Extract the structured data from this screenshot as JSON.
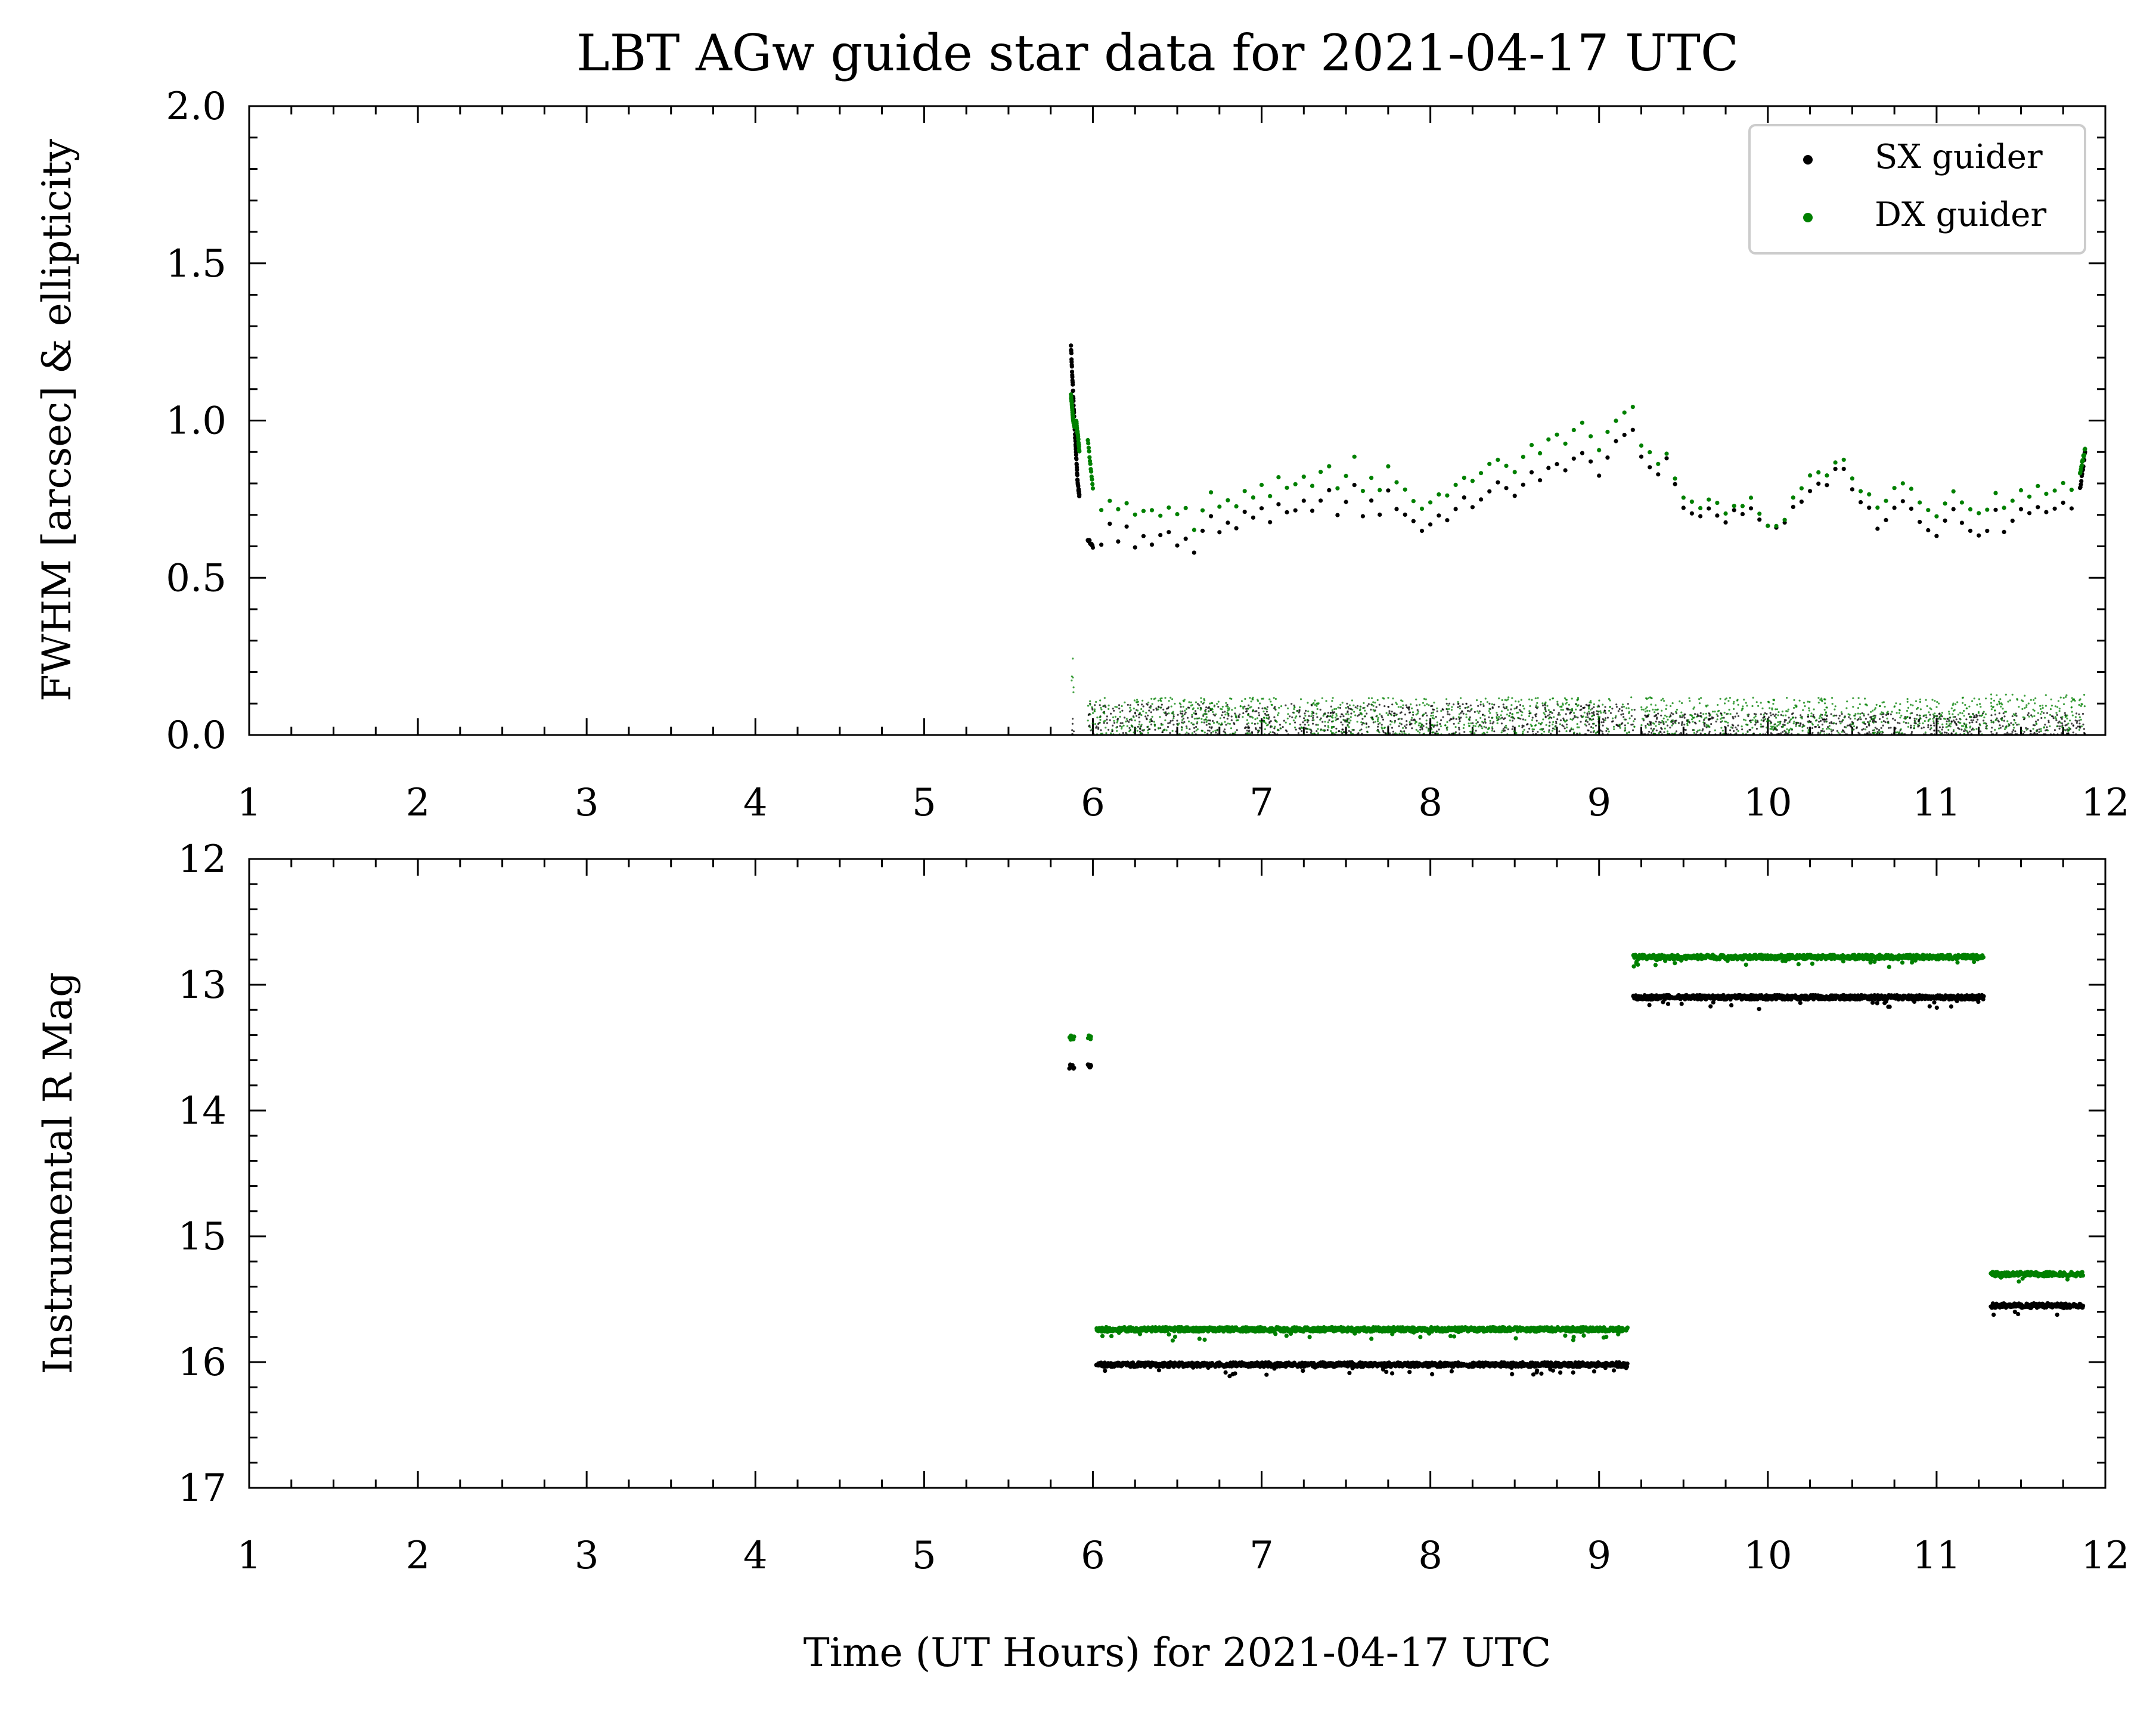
{
  "figure": {
    "title": "LBT AGw guide star data for 2021-04-17 UTC",
    "xlabel": "Time (UT Hours) for 2021-04-17 UTC"
  },
  "colors": {
    "sx": "#000000",
    "dx": "#008000"
  },
  "chart_data": [
    {
      "type": "scatter",
      "panel": "top",
      "ylabel": "FWHM [arcsec] & ellipticity",
      "xlim": [
        1,
        12
      ],
      "ylim": [
        0,
        2
      ],
      "xticks": [
        1,
        2,
        3,
        4,
        5,
        6,
        7,
        8,
        9,
        10,
        11,
        12
      ],
      "xtick_labels": [
        "1",
        "2",
        "3",
        "4",
        "5",
        "6",
        "7",
        "8",
        "9",
        "10",
        "11",
        "12"
      ],
      "yticks": [
        0,
        0.5,
        1,
        1.5,
        2
      ],
      "ytick_labels": [
        "0.0",
        "0.5",
        "1.0",
        "1.5",
        "2.0"
      ],
      "legend": {
        "placement": "top-right",
        "entries": [
          "SX guider",
          "DX guider"
        ]
      },
      "series": [
        {
          "name": "SX guider",
          "color": "#000000",
          "quantity": "FWHM",
          "x": [
            5.87,
            5.88,
            5.89,
            5.9,
            5.91,
            5.92,
            5.97,
            6.0,
            6.05,
            6.1,
            6.15,
            6.2,
            6.25,
            6.3,
            6.35,
            6.4,
            6.45,
            6.5,
            6.55,
            6.6,
            6.65,
            6.7,
            6.75,
            6.8,
            6.85,
            6.9,
            6.95,
            7.0,
            7.05,
            7.1,
            7.15,
            7.2,
            7.25,
            7.3,
            7.35,
            7.4,
            7.45,
            7.5,
            7.55,
            7.6,
            7.65,
            7.7,
            7.75,
            7.8,
            7.85,
            7.9,
            7.95,
            8.0,
            8.05,
            8.1,
            8.15,
            8.2,
            8.25,
            8.3,
            8.35,
            8.4,
            8.45,
            8.5,
            8.55,
            8.6,
            8.65,
            8.7,
            8.75,
            8.8,
            8.85,
            8.9,
            8.95,
            9.0,
            9.05,
            9.1,
            9.15,
            9.2,
            9.25,
            9.3,
            9.35,
            9.4,
            9.45,
            9.5,
            9.55,
            9.6,
            9.65,
            9.7,
            9.75,
            9.8,
            9.85,
            9.9,
            9.95,
            10.0,
            10.05,
            10.1,
            10.15,
            10.2,
            10.25,
            10.3,
            10.35,
            10.4,
            10.45,
            10.5,
            10.55,
            10.6,
            10.65,
            10.7,
            10.75,
            10.8,
            10.85,
            10.9,
            10.95,
            11.0,
            11.05,
            11.1,
            11.15,
            11.2,
            11.25,
            11.3,
            11.35,
            11.4,
            11.45,
            11.5,
            11.55,
            11.6,
            11.65,
            11.7,
            11.75,
            11.8,
            11.85,
            11.88
          ],
          "y": [
            1.24,
            1.12,
            1.0,
            0.9,
            0.8,
            0.76,
            0.62,
            0.6,
            0.61,
            0.67,
            0.62,
            0.66,
            0.6,
            0.63,
            0.6,
            0.63,
            0.65,
            0.6,
            0.62,
            0.58,
            0.65,
            0.7,
            0.65,
            0.68,
            0.66,
            0.71,
            0.69,
            0.72,
            0.68,
            0.73,
            0.71,
            0.72,
            0.74,
            0.71,
            0.75,
            0.78,
            0.7,
            0.74,
            0.8,
            0.7,
            0.74,
            0.7,
            0.78,
            0.72,
            0.7,
            0.68,
            0.65,
            0.67,
            0.7,
            0.68,
            0.72,
            0.75,
            0.73,
            0.75,
            0.78,
            0.8,
            0.78,
            0.76,
            0.8,
            0.83,
            0.81,
            0.85,
            0.86,
            0.84,
            0.88,
            0.9,
            0.87,
            0.82,
            0.88,
            0.93,
            0.95,
            0.97,
            0.88,
            0.85,
            0.83,
            0.88,
            0.8,
            0.72,
            0.7,
            0.69,
            0.72,
            0.7,
            0.68,
            0.71,
            0.7,
            0.72,
            0.68,
            0.66,
            0.66,
            0.67,
            0.72,
            0.74,
            0.78,
            0.8,
            0.8,
            0.84,
            0.85,
            0.78,
            0.74,
            0.72,
            0.66,
            0.68,
            0.72,
            0.74,
            0.72,
            0.68,
            0.65,
            0.63,
            0.68,
            0.72,
            0.68,
            0.65,
            0.63,
            0.65,
            0.72,
            0.65,
            0.68,
            0.72,
            0.7,
            0.73,
            0.71,
            0.72,
            0.74,
            0.72,
            0.78,
            0.9
          ]
        },
        {
          "name": "DX guider",
          "color": "#008000",
          "quantity": "FWHM",
          "x": [
            5.87,
            5.88,
            5.89,
            5.9,
            5.91,
            5.92,
            5.97,
            6.0,
            6.05,
            6.1,
            6.15,
            6.2,
            6.25,
            6.3,
            6.35,
            6.4,
            6.45,
            6.5,
            6.55,
            6.6,
            6.65,
            6.7,
            6.75,
            6.8,
            6.85,
            6.9,
            6.95,
            7.0,
            7.05,
            7.1,
            7.15,
            7.2,
            7.25,
            7.3,
            7.35,
            7.4,
            7.45,
            7.5,
            7.55,
            7.6,
            7.65,
            7.7,
            7.75,
            7.8,
            7.85,
            7.9,
            7.95,
            8.0,
            8.05,
            8.1,
            8.15,
            8.2,
            8.25,
            8.3,
            8.35,
            8.4,
            8.45,
            8.5,
            8.55,
            8.6,
            8.65,
            8.7,
            8.75,
            8.8,
            8.85,
            8.9,
            8.95,
            9.0,
            9.05,
            9.1,
            9.15,
            9.2,
            9.25,
            9.3,
            9.35,
            9.4,
            9.45,
            9.5,
            9.55,
            9.6,
            9.65,
            9.7,
            9.75,
            9.8,
            9.85,
            9.9,
            9.95,
            10.0,
            10.05,
            10.1,
            10.15,
            10.2,
            10.25,
            10.3,
            10.35,
            10.4,
            10.45,
            10.5,
            10.55,
            10.6,
            10.65,
            10.7,
            10.75,
            10.8,
            10.85,
            10.9,
            10.95,
            11.0,
            11.05,
            11.1,
            11.15,
            11.2,
            11.25,
            11.3,
            11.35,
            11.4,
            11.45,
            11.5,
            11.55,
            11.6,
            11.65,
            11.7,
            11.75,
            11.8,
            11.85,
            11.88
          ],
          "y": [
            1.08,
            1.02,
            0.98,
            1.0,
            0.96,
            0.9,
            0.94,
            0.78,
            0.72,
            0.75,
            0.72,
            0.74,
            0.7,
            0.71,
            0.72,
            0.7,
            0.72,
            0.7,
            0.72,
            0.65,
            0.72,
            0.77,
            0.73,
            0.75,
            0.73,
            0.78,
            0.76,
            0.8,
            0.76,
            0.82,
            0.79,
            0.8,
            0.82,
            0.79,
            0.84,
            0.86,
            0.78,
            0.82,
            0.88,
            0.78,
            0.82,
            0.78,
            0.86,
            0.8,
            0.78,
            0.74,
            0.72,
            0.74,
            0.77,
            0.76,
            0.79,
            0.82,
            0.81,
            0.83,
            0.86,
            0.88,
            0.86,
            0.84,
            0.89,
            0.92,
            0.9,
            0.94,
            0.96,
            0.93,
            0.97,
            0.99,
            0.95,
            0.9,
            0.96,
            1.0,
            1.03,
            1.04,
            0.92,
            0.9,
            0.86,
            0.9,
            0.82,
            0.76,
            0.74,
            0.72,
            0.75,
            0.74,
            0.71,
            0.73,
            0.73,
            0.75,
            0.7,
            0.67,
            0.67,
            0.69,
            0.75,
            0.78,
            0.82,
            0.84,
            0.83,
            0.87,
            0.88,
            0.82,
            0.78,
            0.77,
            0.72,
            0.74,
            0.78,
            0.8,
            0.78,
            0.74,
            0.72,
            0.7,
            0.74,
            0.78,
            0.74,
            0.72,
            0.7,
            0.72,
            0.77,
            0.72,
            0.75,
            0.78,
            0.76,
            0.79,
            0.77,
            0.78,
            0.8,
            0.78,
            0.83,
            0.91
          ]
        },
        {
          "name": "SX guider",
          "color": "#000000",
          "quantity": "ellipticity",
          "marker": "tiny",
          "segments": [
            {
              "x": [
                5.87,
                5.89
              ],
              "ylevel": 0.03,
              "spread": 0.03
            },
            {
              "x": [
                5.97,
                9.22
              ],
              "ylevel": 0.05,
              "spread": 0.05
            },
            {
              "x": [
                9.25,
                11.3
              ],
              "ylevel": 0.03,
              "spread": 0.04
            },
            {
              "x": [
                11.32,
                11.88
              ],
              "ylevel": 0.03,
              "spread": 0.04
            }
          ]
        },
        {
          "name": "DX guider",
          "color": "#008000",
          "quantity": "ellipticity",
          "marker": "tiny",
          "segments": [
            {
              "x": [
                5.87,
                5.89
              ],
              "ylevel": 0.17,
              "spread": 0.08
            },
            {
              "x": [
                5.97,
                9.22
              ],
              "ylevel": 0.06,
              "spread": 0.06
            },
            {
              "x": [
                9.25,
                11.3
              ],
              "ylevel": 0.06,
              "spread": 0.06
            },
            {
              "x": [
                11.32,
                11.88
              ],
              "ylevel": 0.07,
              "spread": 0.06
            }
          ]
        }
      ]
    },
    {
      "type": "scatter",
      "panel": "bottom",
      "ylabel": "Instrumental R Mag",
      "xlim": [
        1,
        12
      ],
      "ylim": [
        17,
        12
      ],
      "inverted_y": true,
      "xticks": [
        1,
        2,
        3,
        4,
        5,
        6,
        7,
        8,
        9,
        10,
        11,
        12
      ],
      "xtick_labels": [
        "1",
        "2",
        "3",
        "4",
        "5",
        "6",
        "7",
        "8",
        "9",
        "10",
        "11",
        "12"
      ],
      "yticks": [
        12,
        13,
        14,
        15,
        16,
        17
      ],
      "ytick_labels": [
        "12",
        "13",
        "14",
        "15",
        "16",
        "17"
      ],
      "series": [
        {
          "name": "SX guider",
          "color": "#000000",
          "segments": [
            {
              "x": [
                5.86,
                5.89
              ],
              "mag": 13.65
            },
            {
              "x": [
                5.97,
                5.99
              ],
              "mag": 13.65
            },
            {
              "x": [
                6.02,
                9.17
              ],
              "mag": 16.02
            },
            {
              "x": [
                9.2,
                11.28
              ],
              "mag": 13.1
            },
            {
              "x": [
                11.32,
                11.87
              ],
              "mag": 15.55
            }
          ]
        },
        {
          "name": "DX guider",
          "color": "#008000",
          "segments": [
            {
              "x": [
                5.86,
                5.89
              ],
              "mag": 13.42
            },
            {
              "x": [
                5.97,
                5.99
              ],
              "mag": 13.42
            },
            {
              "x": [
                6.02,
                9.17
              ],
              "mag": 15.74
            },
            {
              "x": [
                9.2,
                11.28
              ],
              "mag": 12.78
            },
            {
              "x": [
                11.32,
                11.87
              ],
              "mag": 15.3
            }
          ]
        }
      ]
    }
  ]
}
